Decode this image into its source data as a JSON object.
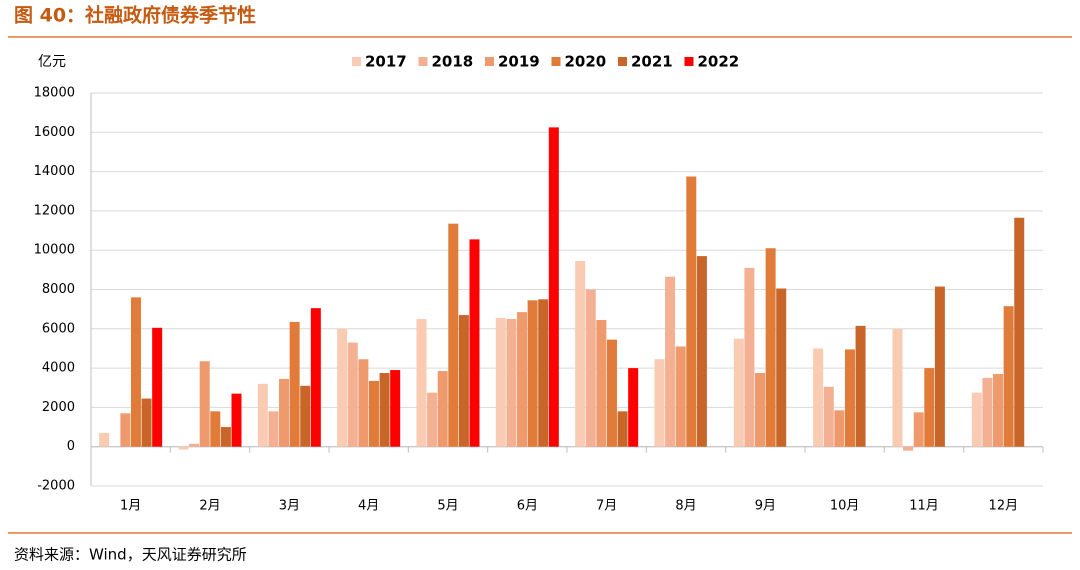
{
  "chart_data": {
    "type": "bar",
    "title": "图 40：社融政府债券季节性",
    "y_label": "亿元",
    "source": "资料来源：Wind，天风证券研究所",
    "categories": [
      "1月",
      "2月",
      "3月",
      "4月",
      "5月",
      "6月",
      "7月",
      "8月",
      "9月",
      "10月",
      "11月",
      "12月"
    ],
    "series": [
      {
        "name": "2017",
        "color": "#f8cbb2",
        "values": [
          700,
          -150,
          3200,
          6000,
          6500,
          6550,
          9450,
          4450,
          5500,
          5000,
          6000,
          2750
        ]
      },
      {
        "name": "2018",
        "color": "#f4b092",
        "values": [
          0,
          150,
          1800,
          5300,
          2750,
          6500,
          8000,
          8650,
          9100,
          3050,
          -200,
          3500
        ]
      },
      {
        "name": "2019",
        "color": "#ee9a6c",
        "values": [
          1700,
          4350,
          3450,
          4450,
          3850,
          6850,
          6450,
          5100,
          3750,
          1850,
          1750,
          3700
        ]
      },
      {
        "name": "2020",
        "color": "#e07b39",
        "values": [
          7600,
          1800,
          6350,
          3350,
          11350,
          7450,
          5450,
          13750,
          10100,
          4950,
          4000,
          7150
        ]
      },
      {
        "name": "2021",
        "color": "#c8662a",
        "values": [
          2450,
          1000,
          3100,
          3750,
          6700,
          7500,
          1800,
          9700,
          8050,
          6150,
          8150,
          11650
        ]
      },
      {
        "name": "2022",
        "color": "#ff0000",
        "values": [
          6050,
          2700,
          7050,
          3900,
          10550,
          16250,
          4000,
          null,
          null,
          null,
          null,
          null
        ]
      }
    ],
    "ylim": [
      -2000,
      18000
    ],
    "yticks": [
      -2000,
      0,
      2000,
      4000,
      6000,
      8000,
      10000,
      12000,
      14000,
      16000,
      18000
    ],
    "grid": true
  }
}
